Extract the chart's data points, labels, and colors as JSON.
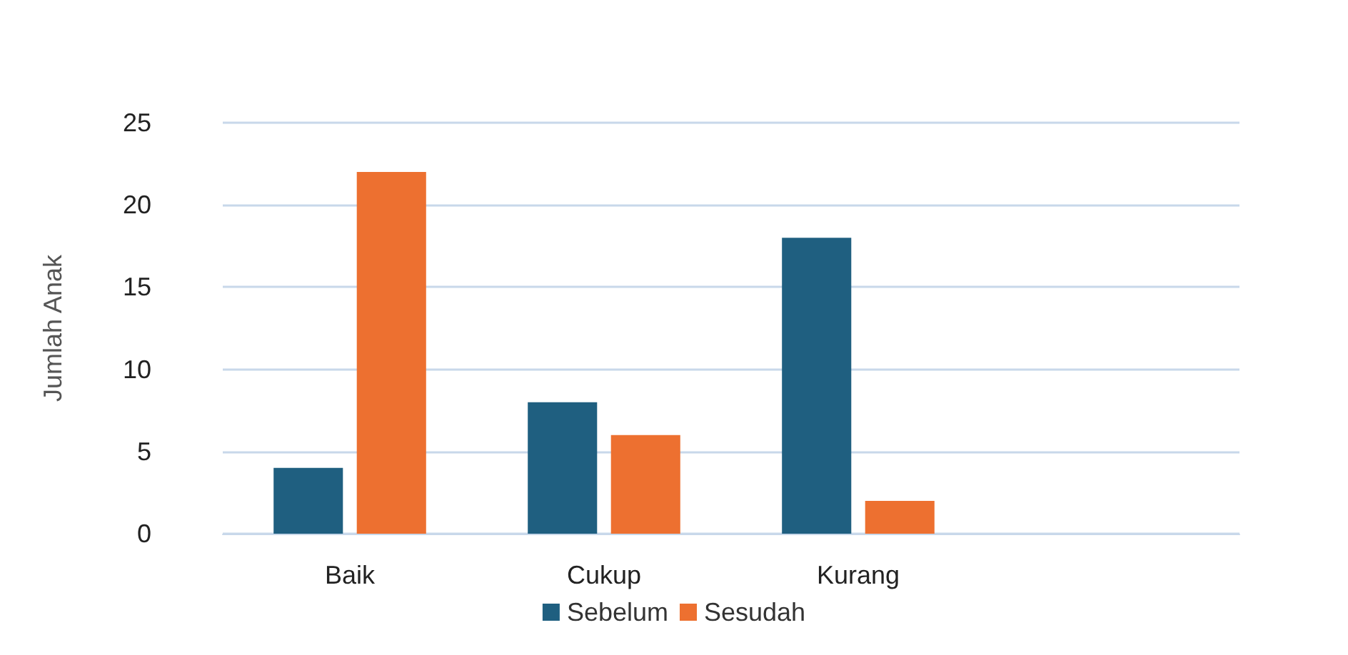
{
  "chart_data": {
    "type": "bar",
    "ylabel": "Jumlah Anak",
    "categories": [
      "Baik",
      "Cukup",
      "Kurang",
      null
    ],
    "series": [
      {
        "name": "Sebelum",
        "color": "#1f5f80",
        "values": [
          4,
          8,
          18,
          null
        ]
      },
      {
        "name": "Sesudah",
        "color": "#ed7030",
        "values": [
          22,
          6,
          2,
          null
        ]
      }
    ],
    "ylim": [
      0,
      25
    ],
    "yticks": [
      0,
      5,
      10,
      15,
      20,
      25
    ],
    "grid": "y",
    "legend": "bottom"
  }
}
